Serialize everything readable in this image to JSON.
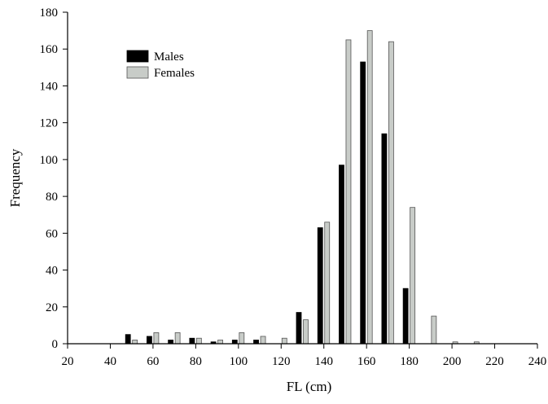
{
  "colors": {
    "males": "#000000",
    "females": "#c8ccc8",
    "bar_stroke": "#555555",
    "axis": "#000000"
  },
  "chart_data": {
    "type": "bar",
    "xlabel": "FL (cm)",
    "ylabel": "Frequency",
    "xlim": [
      20,
      240
    ],
    "ylim": [
      0,
      180
    ],
    "xticks": [
      20,
      40,
      60,
      80,
      100,
      120,
      140,
      160,
      180,
      200,
      220,
      240
    ],
    "yticks": [
      0,
      20,
      40,
      60,
      80,
      100,
      120,
      140,
      160,
      180
    ],
    "legend_position": "top-left",
    "x": [
      50,
      60,
      70,
      80,
      90,
      100,
      110,
      120,
      130,
      140,
      150,
      160,
      170,
      180,
      190,
      200,
      210
    ],
    "series": [
      {
        "name": "Males",
        "color_key": "males",
        "values": [
          5,
          4,
          2,
          3,
          1,
          2,
          2,
          0,
          17,
          63,
          97,
          153,
          114,
          30,
          0,
          0,
          0
        ]
      },
      {
        "name": "Females",
        "color_key": "females",
        "values": [
          2,
          6,
          6,
          3,
          2,
          6,
          4,
          3,
          13,
          66,
          165,
          170,
          164,
          74,
          15,
          1,
          1
        ]
      }
    ]
  }
}
